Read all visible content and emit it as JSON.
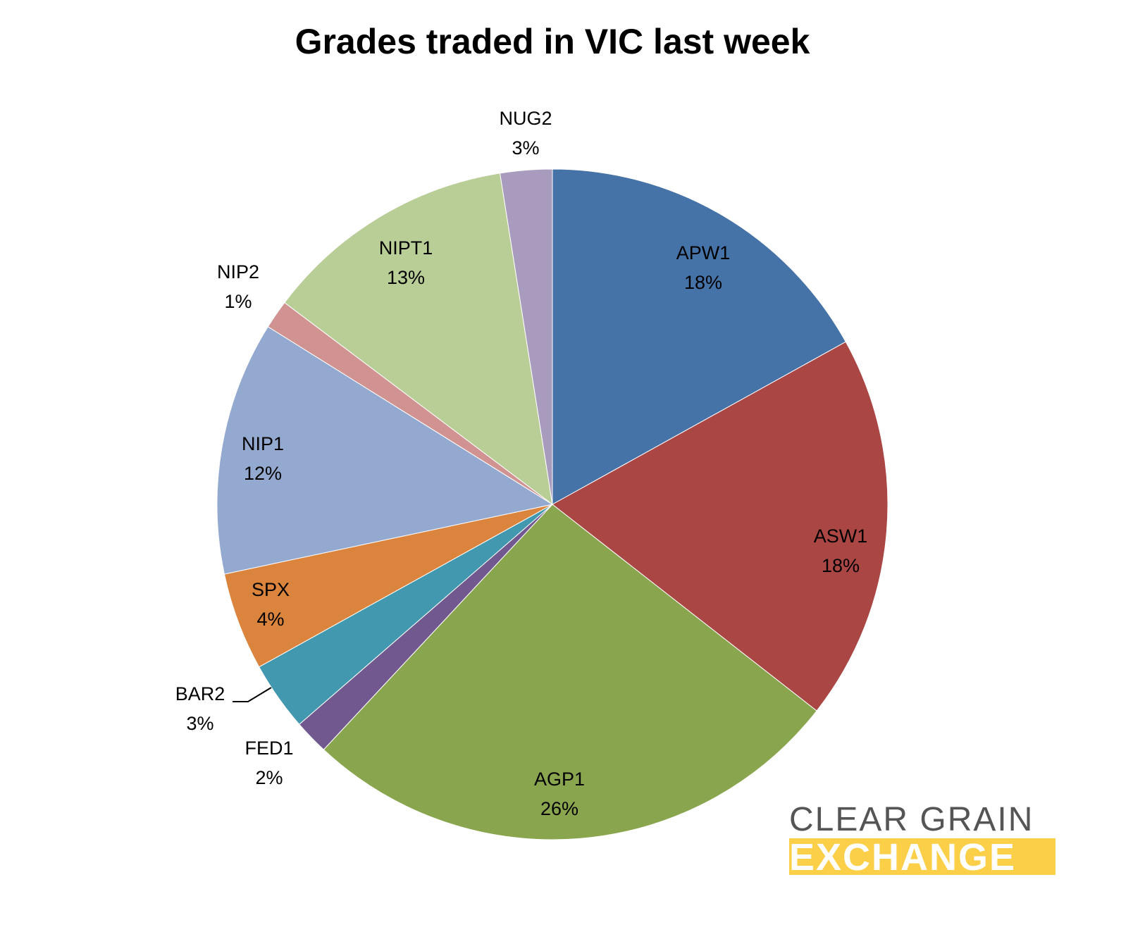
{
  "title": "Grades traded in VIC last week",
  "logo": {
    "line1": "CLEAR GRAIN",
    "line2": "EXCHANGE",
    "text_color": "#555555",
    "band_color": "#fbcf48"
  },
  "labels": [
    {
      "name": "APW1",
      "pct": "18%"
    },
    {
      "name": "ASW1",
      "pct": "18%"
    },
    {
      "name": "AGP1",
      "pct": "26%"
    },
    {
      "name": "FED1",
      "pct": "2%"
    },
    {
      "name": "BAR2",
      "pct": "3%"
    },
    {
      "name": "SPX",
      "pct": "4%"
    },
    {
      "name": "NIP1",
      "pct": "12%"
    },
    {
      "name": "NIP2",
      "pct": "1%"
    },
    {
      "name": "NIPT1",
      "pct": "13%"
    },
    {
      "name": "NUG2",
      "pct": "3%"
    }
  ],
  "chart_data": {
    "type": "pie",
    "title": "Grades traded in VIC last week",
    "categories": [
      "APW1",
      "ASW1",
      "AGP1",
      "FED1",
      "BAR2",
      "SPX",
      "NIP1",
      "NIP2",
      "NIPT1",
      "NUG2"
    ],
    "values": [
      18,
      18,
      26,
      2,
      3,
      4,
      12,
      1,
      13,
      3
    ],
    "units": "%",
    "colors": [
      "#4572a7",
      "#aa4643",
      "#89a54e",
      "#71588f",
      "#4198af",
      "#db843d",
      "#93a9cf",
      "#d19392",
      "#b9cd96",
      "#a99bbd"
    ],
    "start_angle_deg": 0,
    "direction": "clockwise",
    "legend": "none (data labels on/near slices)",
    "data_labels": "category name and percentage"
  }
}
